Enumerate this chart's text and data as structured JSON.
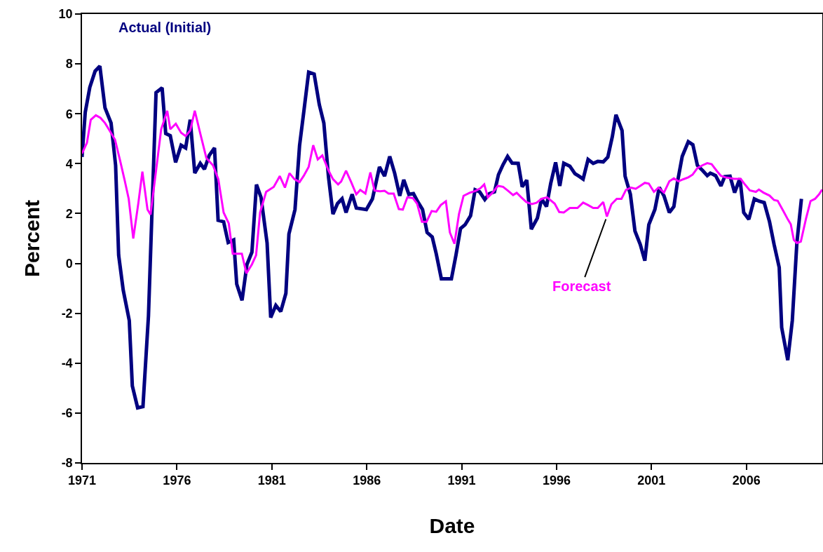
{
  "chart_data": {
    "type": "line",
    "xlabel": "Date",
    "ylabel": "Percent",
    "xlim": [
      1971,
      2010
    ],
    "xticks": [
      1971,
      1976,
      1981,
      1986,
      1991,
      1996,
      2001,
      2006
    ],
    "ylim": [
      -8,
      10
    ],
    "yticks": [
      -8,
      -6,
      -4,
      -2,
      0,
      2,
      4,
      6,
      8,
      10
    ],
    "grid": false,
    "legend": false,
    "marker": "none",
    "line_style": "solid",
    "series": [
      {
        "name": "Actual (Initial)",
        "color": "#000080",
        "x": [
          1971.0,
          1971.17,
          1971.41,
          1971.69,
          1971.94,
          1972.21,
          1972.53,
          1972.77,
          1972.93,
          1973.17,
          1973.49,
          1973.65,
          1973.93,
          1974.21,
          1974.5,
          1974.69,
          1974.9,
          1975.22,
          1975.41,
          1975.65,
          1975.93,
          1976.22,
          1976.46,
          1976.7,
          1976.94,
          1977.23,
          1977.45,
          1977.7,
          1977.98,
          1978.17,
          1978.46,
          1978.7,
          1978.99,
          1979.15,
          1979.43,
          1979.69,
          1979.95,
          1980.19,
          1980.43,
          1980.75,
          1980.94,
          1981.21,
          1981.47,
          1981.74,
          1981.9,
          1982.22,
          1982.46,
          1982.7,
          1982.94,
          1983.23,
          1983.5,
          1983.74,
          1983.98,
          1984.22,
          1984.46,
          1984.7,
          1984.91,
          1985.23,
          1985.45,
          1985.98,
          1986.3,
          1986.67,
          1986.94,
          1987.21,
          1987.47,
          1987.74,
          1987.95,
          1988.22,
          1988.46,
          1988.7,
          1988.94,
          1989.18,
          1989.45,
          1989.66,
          1989.93,
          1990.46,
          1990.7,
          1990.94,
          1991.18,
          1991.47,
          1991.71,
          1991.95,
          1992.22,
          1992.46,
          1992.73,
          1992.94,
          1993.18,
          1993.42,
          1993.66,
          1993.98,
          1994.19,
          1994.43,
          1994.67,
          1994.99,
          1995.21,
          1995.47,
          1995.69,
          1995.95,
          1996.17,
          1996.38,
          1996.7,
          1996.97,
          1997.18,
          1997.4,
          1997.66,
          1997.93,
          1998.17,
          1998.46,
          1998.7,
          1998.94,
          1999.13,
          1999.45,
          1999.61,
          1999.89,
          2000.13,
          2000.41,
          2000.65,
          2000.86,
          2001.18,
          2001.41,
          2001.66,
          2001.94,
          2002.18,
          2002.37,
          2002.62,
          2002.94,
          2003.18,
          2003.42,
          2003.7,
          2003.94,
          2004.1,
          2004.38,
          2004.66,
          2004.86,
          2005.14,
          2005.38,
          2005.66,
          2005.86,
          2006.13,
          2006.42,
          2006.66,
          2006.94,
          2007.22,
          2007.46,
          2007.73,
          2007.86,
          2008.18,
          2008.42,
          2008.66,
          2008.9
        ],
        "values": [
          4.27,
          6.06,
          7.06,
          7.71,
          7.91,
          6.24,
          5.63,
          3.93,
          0.33,
          -1.07,
          -2.29,
          -4.91,
          -5.79,
          -5.74,
          -2.11,
          2.16,
          6.85,
          7.04,
          5.21,
          5.12,
          4.05,
          4.74,
          4.63,
          5.76,
          3.62,
          4.01,
          3.78,
          4.33,
          4.63,
          1.73,
          1.67,
          0.84,
          0.94,
          -0.83,
          -1.48,
          -0.04,
          0.45,
          3.16,
          2.65,
          0.82,
          -2.17,
          -1.68,
          -1.93,
          -1.2,
          1.18,
          2.16,
          4.72,
          6.18,
          7.67,
          7.59,
          6.37,
          5.63,
          3.5,
          1.98,
          2.4,
          2.59,
          2.04,
          2.77,
          2.22,
          2.16,
          2.59,
          3.87,
          3.5,
          4.29,
          3.62,
          2.71,
          3.35,
          2.77,
          2.8,
          2.46,
          2.16,
          1.24,
          1.06,
          0.39,
          -0.62,
          -0.62,
          0.33,
          1.4,
          1.55,
          1.91,
          2.95,
          2.87,
          2.56,
          2.8,
          2.87,
          3.56,
          3.96,
          4.29,
          4.02,
          4.01,
          3.07,
          3.34,
          1.37,
          1.82,
          2.59,
          2.28,
          3.2,
          4.05,
          3.11,
          4.02,
          3.9,
          3.6,
          3.5,
          3.38,
          4.17,
          4.01,
          4.09,
          4.07,
          4.26,
          5.09,
          5.96,
          5.33,
          3.5,
          2.77,
          1.3,
          0.76,
          0.11,
          1.55,
          2.16,
          3.05,
          2.71,
          2.04,
          2.28,
          3.26,
          4.29,
          4.88,
          4.76,
          3.93,
          3.72,
          3.52,
          3.62,
          3.52,
          3.11,
          3.48,
          3.5,
          2.84,
          3.41,
          2.04,
          1.77,
          2.59,
          2.5,
          2.44,
          1.67,
          0.76,
          -0.16,
          -2.57,
          -3.88,
          -2.29,
          0.82,
          2.59
        ]
      },
      {
        "name": "Forecast",
        "color": "#ff00ff",
        "x": [
          1971.0,
          1971.26,
          1971.46,
          1971.73,
          1971.97,
          1972.21,
          1972.45,
          1972.74,
          1973.01,
          1973.25,
          1973.46,
          1973.7,
          1973.97,
          1974.18,
          1974.45,
          1974.61,
          1974.9,
          1975.17,
          1975.49,
          1975.65,
          1975.94,
          1976.22,
          1976.46,
          1976.7,
          1976.94,
          1977.23,
          1977.55,
          1977.9,
          1978.18,
          1978.46,
          1978.73,
          1978.94,
          1979.42,
          1979.66,
          1979.95,
          1980.17,
          1980.38,
          1980.7,
          1981.1,
          1981.42,
          1981.69,
          1981.93,
          1982.19,
          1982.46,
          1982.67,
          1982.94,
          1983.18,
          1983.42,
          1983.66,
          1983.98,
          1984.22,
          1984.49,
          1984.65,
          1984.91,
          1985.18,
          1985.45,
          1985.66,
          1985.93,
          1986.19,
          1986.41,
          1986.7,
          1986.94,
          1987.15,
          1987.42,
          1987.69,
          1987.9,
          1988.14,
          1988.43,
          1988.65,
          1988.91,
          1989.15,
          1989.42,
          1989.66,
          1989.9,
          1990.17,
          1990.38,
          1990.62,
          1990.86,
          1991.1,
          1991.42,
          1991.74,
          1991.98,
          1992.19,
          1992.38,
          1992.62,
          1992.91,
          1993.18,
          1993.45,
          1993.71,
          1993.9,
          1994.14,
          1994.41,
          1994.7,
          1994.94,
          1995.21,
          1995.5,
          1995.9,
          1996.14,
          1996.38,
          1996.7,
          1997.1,
          1997.4,
          1997.66,
          1997.93,
          1998.17,
          1998.46,
          1998.65,
          1998.89,
          1999.17,
          1999.42,
          1999.66,
          1999.93,
          2000.17,
          2000.41,
          2000.65,
          2000.86,
          2001.13,
          2001.37,
          2001.66,
          2001.94,
          2002.18,
          2002.42,
          2002.66,
          2002.94,
          2003.17,
          2003.42,
          2003.7,
          2003.94,
          2004.17,
          2004.45,
          2004.66,
          2004.9,
          2005.35,
          2005.7,
          2005.94,
          2006.18,
          2006.5,
          2006.66,
          2006.9,
          2007.22,
          2007.46,
          2007.65,
          2007.94,
          2008.18,
          2008.34,
          2008.5,
          2008.66,
          2008.87,
          2009.14,
          2009.38,
          2009.62,
          2009.83,
          2009.99
        ],
        "values": [
          4.41,
          4.84,
          5.76,
          5.94,
          5.84,
          5.63,
          5.33,
          4.96,
          4.11,
          3.32,
          2.59,
          1.0,
          2.43,
          3.68,
          2.16,
          1.96,
          3.72,
          5.38,
          6.12,
          5.38,
          5.6,
          5.24,
          5.11,
          5.33,
          6.12,
          5.21,
          4.23,
          3.93,
          3.38,
          2.04,
          1.61,
          0.39,
          0.39,
          -0.4,
          -0.04,
          0.33,
          2.04,
          2.87,
          3.07,
          3.5,
          3.04,
          3.62,
          3.38,
          3.26,
          3.5,
          3.87,
          4.74,
          4.17,
          4.33,
          3.74,
          3.38,
          3.17,
          3.28,
          3.72,
          3.26,
          2.77,
          2.95,
          2.8,
          3.65,
          2.92,
          2.89,
          2.91,
          2.8,
          2.8,
          2.18,
          2.16,
          2.65,
          2.62,
          2.4,
          1.67,
          1.67,
          2.1,
          2.07,
          2.34,
          2.49,
          1.24,
          0.79,
          1.98,
          2.71,
          2.83,
          2.91,
          3.01,
          3.17,
          2.65,
          2.83,
          3.11,
          3.07,
          2.91,
          2.74,
          2.83,
          2.65,
          2.46,
          2.38,
          2.43,
          2.59,
          2.65,
          2.4,
          2.06,
          2.04,
          2.22,
          2.22,
          2.44,
          2.34,
          2.22,
          2.22,
          2.46,
          1.88,
          2.37,
          2.59,
          2.59,
          2.95,
          3.04,
          2.99,
          3.11,
          3.23,
          3.2,
          2.87,
          3.04,
          2.84,
          3.29,
          3.41,
          3.29,
          3.37,
          3.45,
          3.56,
          3.82,
          3.94,
          4.02,
          3.98,
          3.7,
          3.51,
          3.45,
          3.39,
          3.39,
          3.15,
          2.93,
          2.87,
          2.96,
          2.84,
          2.72,
          2.54,
          2.51,
          2.11,
          1.77,
          1.57,
          0.94,
          0.82,
          0.88,
          1.79,
          2.5,
          2.59,
          2.77,
          2.96
        ]
      }
    ]
  }
}
